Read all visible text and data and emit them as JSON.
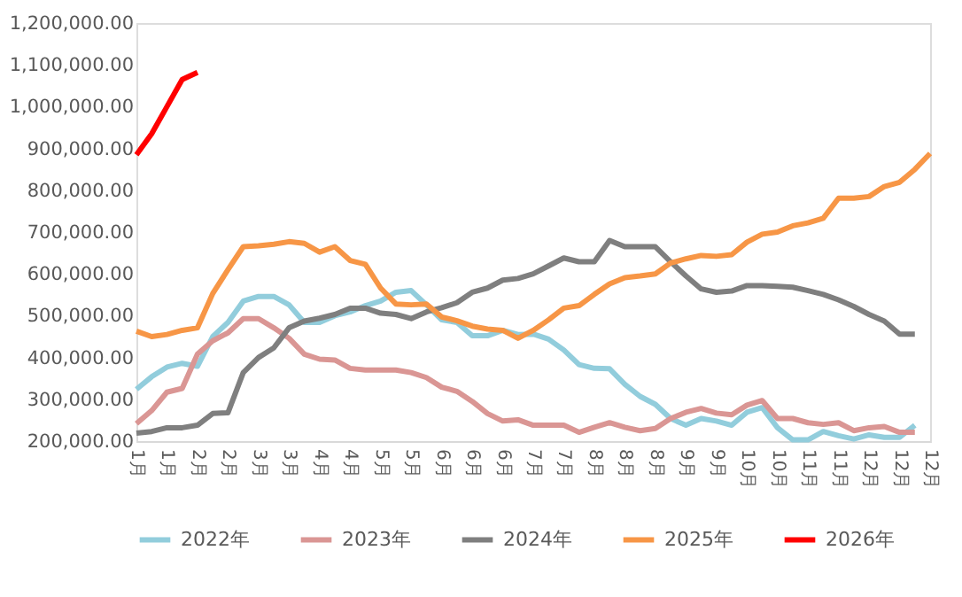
{
  "chart_data": {
    "type": "line",
    "categories": [
      "1月",
      null,
      "1月",
      null,
      "2月",
      null,
      "2月",
      null,
      "3月",
      null,
      "3月",
      null,
      "4月",
      null,
      "4月",
      null,
      "5月",
      null,
      "5月",
      null,
      "6月",
      null,
      "6月",
      null,
      "6月",
      null,
      "7月",
      null,
      "7月",
      null,
      "8月",
      null,
      "8月",
      null,
      "8月",
      null,
      "9月",
      null,
      "9月",
      null,
      "10月",
      null,
      "10月",
      null,
      "11月",
      null,
      "11月",
      null,
      "12月",
      null,
      "12月",
      null,
      "12月"
    ],
    "ylim": [
      200000,
      1200000
    ],
    "yticks": [
      {
        "value": 200000,
        "label": "200,000.00"
      },
      {
        "value": 300000,
        "label": "300,000.00"
      },
      {
        "value": 400000,
        "label": "400,000.00"
      },
      {
        "value": 500000,
        "label": "500,000.00"
      },
      {
        "value": 600000,
        "label": "600,000.00"
      },
      {
        "value": 700000,
        "label": "700,000.00"
      },
      {
        "value": 800000,
        "label": "800,000.00"
      },
      {
        "value": 900000,
        "label": "900,000.00"
      },
      {
        "value": 1000000,
        "label": "1,000,000.00"
      },
      {
        "value": 1100000,
        "label": "1,100,000.00"
      },
      {
        "value": 1200000,
        "label": "1,200,000.00"
      }
    ],
    "grid": false,
    "legend": "bottom",
    "marker": "none",
    "line_style": "solid",
    "series": [
      {
        "name": "2022年",
        "color": "#92cddc",
        "values": [
          324000,
          354000,
          377000,
          386000,
          379000,
          450000,
          484000,
          535000,
          546000,
          546000,
          526000,
          484000,
          484000,
          500000,
          509000,
          524000,
          535000,
          556000,
          560000,
          526000,
          490000,
          484000,
          452000,
          452000,
          465000,
          455000,
          456000,
          444000,
          418000,
          383000,
          374000,
          373000,
          336000,
          307000,
          288000,
          254000,
          238000,
          254000,
          248000,
          238000,
          269000,
          280000,
          232000,
          203000,
          203000,
          223000,
          213000,
          205000,
          215000,
          209000,
          209000,
          238000,
          null
        ]
      },
      {
        "name": "2023年",
        "color": "#da9694",
        "values": [
          242000,
          273000,
          317000,
          326000,
          408000,
          440000,
          459000,
          493000,
          493000,
          471000,
          446000,
          408000,
          396000,
          394000,
          374000,
          370000,
          370000,
          370000,
          364000,
          352000,
          329000,
          319000,
          295000,
          266000,
          248000,
          251000,
          238000,
          238000,
          238000,
          221000,
          233000,
          244000,
          233000,
          225000,
          230000,
          254000,
          269000,
          278000,
          267000,
          263000,
          286000,
          297000,
          254000,
          254000,
          244000,
          240000,
          244000,
          225000,
          232000,
          235000,
          221000,
          221000,
          null
        ]
      },
      {
        "name": "2024年",
        "color": "#7f7f7f",
        "values": [
          219000,
          223000,
          232000,
          232000,
          238000,
          266000,
          268000,
          364000,
          400000,
          423000,
          471000,
          487000,
          494000,
          503000,
          518000,
          518000,
          506000,
          503000,
          493000,
          509000,
          519000,
          531000,
          556000,
          566000,
          585000,
          589000,
          600000,
          619000,
          638000,
          629000,
          629000,
          680000,
          665000,
          665000,
          665000,
          629000,
          595000,
          564000,
          556000,
          559000,
          572000,
          572000,
          570000,
          568000,
          560000,
          551000,
          538000,
          522000,
          503000,
          487000,
          456000,
          456000,
          null
        ]
      },
      {
        "name": "2025年",
        "color": "#f79646",
        "values": [
          463000,
          450000,
          455000,
          465000,
          471000,
          553000,
          610000,
          665000,
          667000,
          671000,
          677000,
          673000,
          652000,
          665000,
          632000,
          623000,
          566000,
          528000,
          526000,
          528000,
          497000,
          488000,
          475000,
          468000,
          465000,
          446000,
          465000,
          490000,
          518000,
          524000,
          551000,
          576000,
          591000,
          595000,
          600000,
          626000,
          636000,
          644000,
          642000,
          646000,
          676000,
          695000,
          700000,
          715000,
          722000,
          733000,
          781000,
          781000,
          785000,
          809000,
          819000,
          850000,
          888000
        ]
      },
      {
        "name": "2026年",
        "color": "#ff0000",
        "values": [
          885000,
          935000,
          1000000,
          1065000,
          1082000,
          null,
          null,
          null,
          null,
          null,
          null,
          null,
          null,
          null,
          null,
          null,
          null,
          null,
          null,
          null,
          null,
          null,
          null,
          null,
          null,
          null,
          null,
          null,
          null,
          null,
          null,
          null,
          null,
          null,
          null,
          null,
          null,
          null,
          null,
          null,
          null,
          null,
          null,
          null,
          null,
          null,
          null,
          null,
          null,
          null,
          null,
          null,
          null
        ]
      }
    ]
  }
}
